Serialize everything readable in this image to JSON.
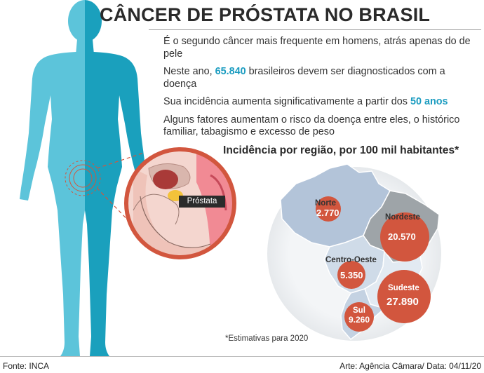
{
  "title": "CÂNCER DE PRÓSTATA NO BRASIL",
  "facts": {
    "f1": "É o segundo câncer mais frequente em homens, atrás apenas do de pele",
    "f2_before": "Neste ano, ",
    "f2_highlight": "65.840",
    "f2_after": " brasileiros devem ser diagnosticados com a doença",
    "f3_before": "Sua incidência aumenta significativamente a partir dos ",
    "f3_highlight": "50 anos",
    "f4": "Alguns fatores aumentam o risco da doença entre eles, o histórico familiar, tabagismo e excesso de peso"
  },
  "diagram": {
    "organ_label": "Próstata"
  },
  "map": {
    "title": "Incidência por região, por 100 mil habitantes*",
    "footnote": "*Estimativas para 2020",
    "regions": [
      {
        "name": "Norte",
        "value": "2.770"
      },
      {
        "name": "Nordeste",
        "value": "20.570"
      },
      {
        "name": "Centro-Oeste",
        "value": "5.350"
      },
      {
        "name": "Sudeste",
        "value": "27.890"
      },
      {
        "name": "Sul",
        "value": "9.260"
      }
    ]
  },
  "footer": {
    "source": "Fonte: INCA",
    "credit": "Arte: Agência Câmara/ Data: 04/11/20"
  },
  "colors": {
    "body_light": "#4bbfd6",
    "body_dark": "#1ba3bf",
    "highlight": "#1b9cc0",
    "circle_red": "#d2563e",
    "map_norte": "#b3c4d9",
    "map_nordeste": "#9ea4a8",
    "map_centro_oeste": "#cfdbe8",
    "map_sudeste": "#e2eaf2",
    "map_sul": "#c4d2e2"
  }
}
